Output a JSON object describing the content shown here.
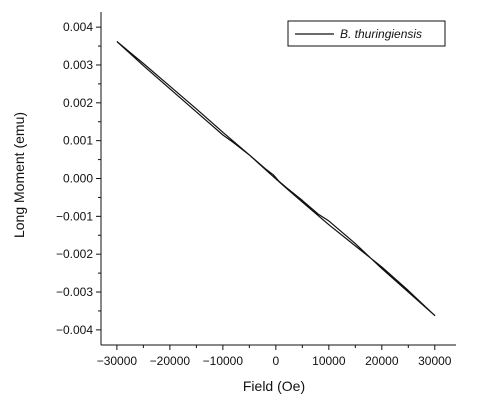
{
  "chart_data": {
    "type": "line",
    "title": "",
    "xlabel": "Field (Oe)",
    "ylabel": "Long Moment (emu)",
    "xlim": [
      -33000,
      34000
    ],
    "ylim": [
      -0.0044,
      0.0044
    ],
    "grid": false,
    "legend_position": "top-right",
    "x_ticks": [
      -30000,
      -20000,
      -10000,
      0,
      10000,
      20000,
      30000
    ],
    "x_tick_labels": [
      "−30000",
      "−20000",
      "−10000",
      "0",
      "10000",
      "20000",
      "30000"
    ],
    "y_ticks": [
      0.004,
      0.003,
      0.002,
      0.001,
      0.0,
      -0.001,
      -0.002,
      -0.003,
      -0.004
    ],
    "y_tick_labels": [
      "0.004",
      "0.003",
      "0.002",
      "0.001",
      "0.000",
      "−0.001",
      "−0.002",
      "−0.003",
      "−0.004"
    ],
    "series": [
      {
        "name": "B. thuringiensis",
        "color": "#111111",
        "x": [
          -30000,
          -25000,
          -20000,
          -15000,
          -10000,
          -8000,
          -5000,
          -2000,
          -500,
          0,
          500,
          2000,
          5000,
          8000,
          10000,
          15000,
          20000,
          25000,
          30000,
          25000,
          20000,
          15000,
          10000,
          5000,
          2000,
          0,
          -2000,
          -5000,
          -10000,
          -15000,
          -20000,
          -25000,
          -30000
        ],
        "y": [
          0.00362,
          0.00298,
          0.00237,
          0.00176,
          0.00115,
          0.00095,
          0.00062,
          0.00026,
          0.0001,
          2e-05,
          -6e-05,
          -0.00024,
          -0.00058,
          -0.00094,
          -0.00112,
          -0.00172,
          -0.00238,
          -0.003,
          -0.00362,
          -0.00296,
          -0.00234,
          -0.00178,
          -0.00122,
          -0.00062,
          -0.00026,
          -1e-05,
          0.00024,
          0.00062,
          0.00122,
          0.00184,
          0.00244,
          0.00304,
          0.00362
        ]
      }
    ]
  }
}
